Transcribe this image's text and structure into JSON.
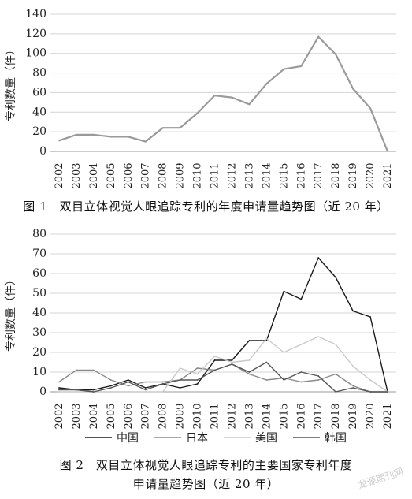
{
  "figure1": {
    "caption": "图 1　双目立体视觉人眼追踪专利的年度申请量趋势图（近 20 年）",
    "chart_data": {
      "type": "line",
      "ylabel": "专利数量（件）",
      "xlabel": "",
      "ylim": [
        0,
        140
      ],
      "yticks": [
        0,
        20,
        40,
        60,
        80,
        100,
        120,
        140
      ],
      "categories": [
        "2002",
        "2003",
        "2004",
        "2005",
        "2006",
        "2007",
        "2008",
        "2009",
        "2010",
        "2011",
        "2012",
        "2013",
        "2014",
        "2015",
        "2016",
        "2017",
        "2018",
        "2019",
        "2020",
        "2021"
      ],
      "grid": true,
      "series": [
        {
          "color": "#9a9a9a",
          "values": [
            11,
            17,
            17,
            15,
            15,
            10,
            24,
            24,
            39,
            57,
            55,
            48,
            69,
            84,
            87,
            117,
            99,
            64,
            44,
            0
          ]
        }
      ]
    }
  },
  "figure2": {
    "caption_line1": "图 2　双目立体视觉人眼追踪专利的主要国家专利年度",
    "caption_line2": "申请量趋势图（近 20 年）",
    "chart_data": {
      "type": "line",
      "ylabel": "专利数量（件）",
      "xlabel": "",
      "ylim": [
        0,
        80
      ],
      "yticks": [
        0,
        10,
        20,
        30,
        40,
        50,
        60,
        70,
        80
      ],
      "categories": [
        "2002",
        "2003",
        "2004",
        "2005",
        "2006",
        "2007",
        "2008",
        "2009",
        "2010",
        "2011",
        "2012",
        "2013",
        "2014",
        "2015",
        "2016",
        "2017",
        "2018",
        "2019",
        "2020",
        "2021"
      ],
      "grid": true,
      "legend": "bottom",
      "series": [
        {
          "name": "中国",
          "color": "#1a1a1a",
          "values": [
            2,
            1,
            1,
            3,
            6,
            2,
            4,
            2,
            4,
            16,
            16,
            26,
            26,
            51,
            47,
            68,
            58,
            41,
            38,
            0
          ]
        },
        {
          "name": "日本",
          "color": "#8a8a8a",
          "values": [
            5,
            11,
            11,
            6,
            3,
            5,
            5,
            6,
            12,
            11,
            14,
            9,
            6,
            7,
            5,
            6,
            9,
            3,
            0,
            0
          ]
        },
        {
          "name": "美国",
          "color": "#c9c9c9",
          "values": [
            0,
            0,
            0,
            0,
            0,
            0,
            0,
            12,
            9,
            18,
            15,
            16,
            27,
            20,
            24,
            28,
            24,
            13,
            6,
            0
          ]
        },
        {
          "name": "韩国",
          "color": "#555555",
          "values": [
            1,
            1,
            0,
            2,
            5,
            1,
            4,
            6,
            6,
            11,
            14,
            10,
            15,
            6,
            10,
            8,
            0,
            2,
            0,
            0
          ]
        }
      ]
    }
  },
  "watermark": "龙源期刊网"
}
